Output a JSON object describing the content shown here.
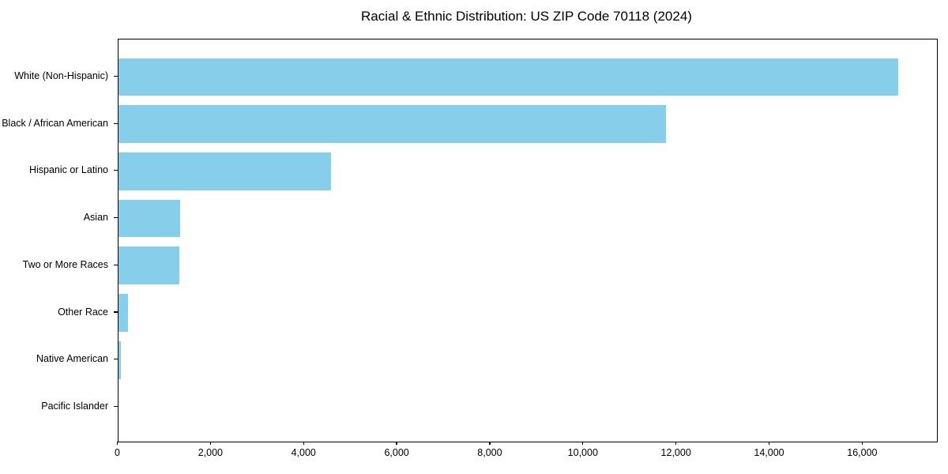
{
  "chart": {
    "title": "Racial & Ethnic Distribution: US ZIP Code 70118 (2024)"
  },
  "chart_data": {
    "type": "bar",
    "orientation": "horizontal",
    "title": "Racial & Ethnic Distribution: US ZIP Code 70118 (2024)",
    "categories": [
      "White (Non-Hispanic)",
      "Black / African American",
      "Hispanic or Latino",
      "Asian",
      "Two or More Races",
      "Other Race",
      "Native American",
      "Pacific Islander"
    ],
    "values": [
      16750,
      11760,
      4570,
      1340,
      1320,
      220,
      60,
      0
    ],
    "xlabel": "",
    "ylabel": "",
    "xlim": [
      0,
      17580
    ],
    "xticks": [
      0,
      2000,
      4000,
      6000,
      8000,
      10000,
      12000,
      14000,
      16000
    ],
    "xtick_labels": [
      "0",
      "2,000",
      "4,000",
      "6,000",
      "8,000",
      "10,000",
      "12,000",
      "14,000",
      "16,000"
    ],
    "grid": false,
    "legend": null,
    "bar_color": "#87CEEB",
    "axis_color": "#000000",
    "text_color": "#000000",
    "background": "#FFFFFF"
  }
}
